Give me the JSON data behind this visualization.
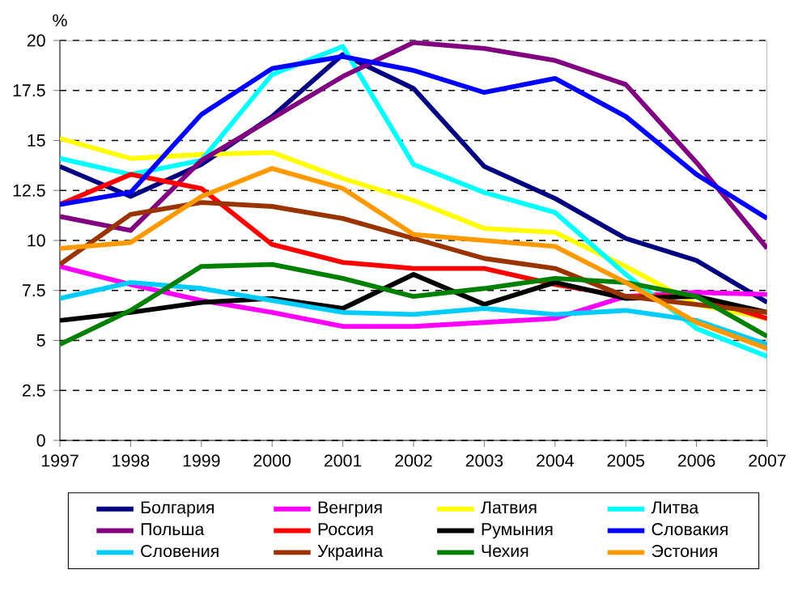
{
  "chart_data": {
    "type": "line",
    "ylabel": "%",
    "x": [
      1997,
      1998,
      1999,
      2000,
      2001,
      2002,
      2003,
      2004,
      2005,
      2006,
      2007
    ],
    "xlim": [
      1997,
      2007
    ],
    "xticks": [
      1997,
      1998,
      1999,
      2000,
      2001,
      2002,
      2003,
      2004,
      2005,
      2006,
      2007
    ],
    "ylim": [
      0,
      20
    ],
    "yticks": [
      0,
      2.5,
      5,
      7.5,
      10,
      12.5,
      15,
      17.5,
      20
    ],
    "grid": "y",
    "legend": "bottom",
    "marker": "none",
    "line_style": "solid",
    "series": [
      {
        "name": "Болгария",
        "color": "#000080",
        "values": [
          13.7,
          12.2,
          13.8,
          16.2,
          19.3,
          17.6,
          13.7,
          12.1,
          10.1,
          9.0,
          6.9
        ]
      },
      {
        "name": "Венгрия",
        "color": "#ff00ff",
        "values": [
          8.7,
          7.8,
          7.0,
          6.4,
          5.7,
          5.7,
          5.9,
          6.1,
          7.2,
          7.4,
          7.3
        ]
      },
      {
        "name": "Латвия",
        "color": "#ffff00",
        "values": [
          15.1,
          14.1,
          14.3,
          14.4,
          13.1,
          12.0,
          10.6,
          10.4,
          8.7,
          6.8,
          6.1
        ]
      },
      {
        "name": "Литва",
        "color": "#00ffff",
        "values": [
          14.1,
          13.3,
          14.0,
          18.3,
          19.7,
          13.8,
          12.4,
          11.4,
          8.3,
          5.6,
          4.2
        ]
      },
      {
        "name": "Польша",
        "color": "#800080",
        "values": [
          11.2,
          10.5,
          14.0,
          16.1,
          18.2,
          19.9,
          19.6,
          19.0,
          17.8,
          13.9,
          9.6
        ]
      },
      {
        "name": "Россия",
        "color": "#ff0000",
        "values": [
          11.8,
          13.3,
          12.6,
          9.8,
          8.9,
          8.6,
          8.6,
          7.8,
          7.2,
          7.2,
          6.1
        ]
      },
      {
        "name": "Румыния",
        "color": "#000000",
        "values": [
          6.0,
          6.4,
          6.9,
          7.1,
          6.6,
          8.3,
          6.8,
          7.9,
          7.1,
          7.2,
          6.4
        ]
      },
      {
        "name": "Словакия",
        "color": "#0000ff",
        "values": [
          11.8,
          12.4,
          16.3,
          18.6,
          19.2,
          18.5,
          17.4,
          18.1,
          16.2,
          13.3,
          11.1
        ]
      },
      {
        "name": "Словения",
        "color": "#00ccff",
        "values": [
          7.1,
          7.9,
          7.6,
          7.0,
          6.4,
          6.3,
          6.6,
          6.3,
          6.5,
          6.0,
          4.8
        ]
      },
      {
        "name": "Украина",
        "color": "#993300",
        "values": [
          8.8,
          11.3,
          11.9,
          11.7,
          11.1,
          10.1,
          9.1,
          8.6,
          7.2,
          6.8,
          6.4
        ]
      },
      {
        "name": "Чехия",
        "color": "#008000",
        "values": [
          4.8,
          6.5,
          8.7,
          8.8,
          8.1,
          7.2,
          7.6,
          8.1,
          7.9,
          7.2,
          5.2
        ]
      },
      {
        "name": "Эстония",
        "color": "#ff9900",
        "values": [
          9.6,
          9.9,
          12.2,
          13.6,
          12.6,
          10.3,
          10.0,
          9.7,
          7.9,
          5.9,
          4.6
        ]
      }
    ]
  }
}
